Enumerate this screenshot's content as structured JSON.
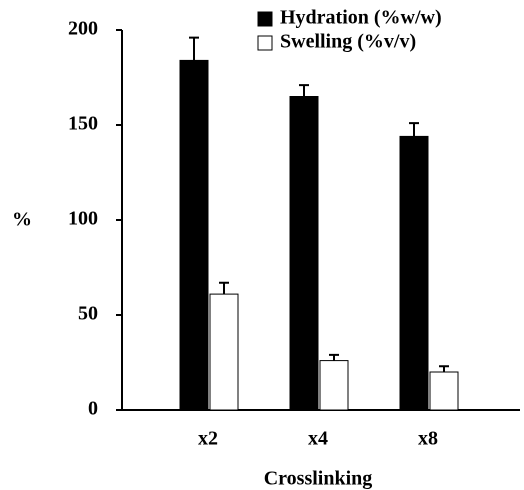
{
  "chart_data": {
    "type": "bar",
    "x_label": "Crosslinking",
    "y_label": "%",
    "categories": [
      "x2",
      "x4",
      "x8"
    ],
    "series": [
      {
        "name": "Hydration (%w/w)",
        "color": "#000000",
        "values": [
          184,
          165,
          144
        ],
        "errors": [
          12,
          6,
          7
        ]
      },
      {
        "name": "Swelling (%v/v)",
        "color": "#ffffff",
        "values": [
          61,
          26,
          20
        ],
        "errors": [
          6,
          3,
          3
        ]
      }
    ],
    "ylim": [
      0,
      200
    ],
    "yticks": [
      0,
      50,
      100,
      150,
      200
    ],
    "grid": false,
    "legend": "upper right"
  }
}
